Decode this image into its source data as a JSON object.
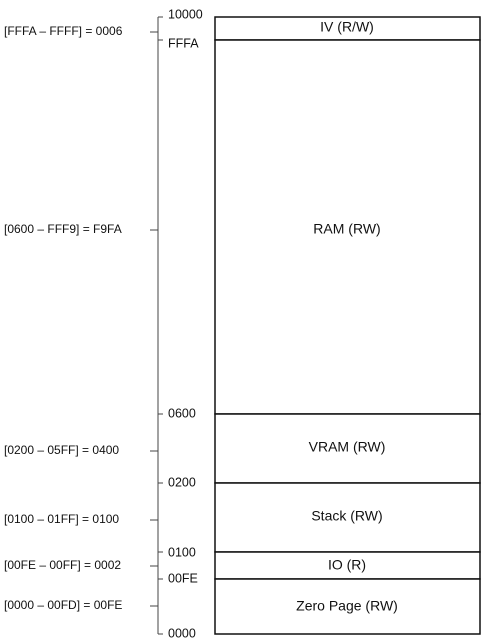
{
  "regions": [
    {
      "label": "IV (R/W)",
      "range_label": "",
      "top_addr": "10000",
      "bottom_addr": "FFFA"
    },
    {
      "label": "RAM (RW)",
      "range_label": "[0600 – FFF9] = F9FA",
      "top_addr": "",
      "bottom_addr": "0600"
    },
    {
      "label": "VRAM (RW)",
      "range_label": "[0200 – 05FF] = 0400",
      "top_addr": "",
      "bottom_addr": "0200"
    },
    {
      "label": "Stack (RW)",
      "range_label": "[0100 – 01FF] = 0100",
      "top_addr": "",
      "bottom_addr": "0100"
    },
    {
      "label": "IO (R)",
      "range_label": "[00FE – 00FF] = 0002",
      "top_addr": "",
      "bottom_addr": "00FE"
    },
    {
      "label": "Zero Page (RW)",
      "range_label": "[0000 – 00FD] = 00FE",
      "top_addr": "",
      "bottom_addr": "0000"
    }
  ],
  "iv_range_label": "[FFFA – FFFF] = 0006"
}
